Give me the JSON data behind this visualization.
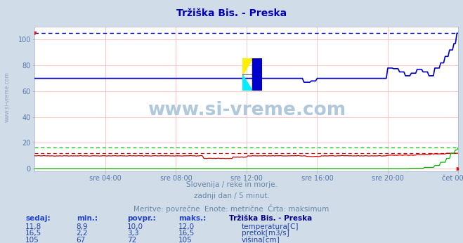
{
  "title": "Tržiška Bis. - Preska",
  "background_color": "#d0dce8",
  "plot_bg_color": "#ffffff",
  "grid_color": "#ffbbbb",
  "tick_color": "#5577aa",
  "title_color": "#0000bb",
  "xlim": [
    0,
    288
  ],
  "ylim": [
    -2,
    110
  ],
  "yticks": [
    0,
    20,
    40,
    60,
    80,
    100
  ],
  "xtick_labels": [
    "sre 04:00",
    "sre 08:00",
    "sre 12:00",
    "sre 16:00",
    "sre 20:00",
    "čet 00:00"
  ],
  "xtick_positions": [
    48,
    96,
    144,
    192,
    240,
    288
  ],
  "watermark_text": "www.si-vreme.com",
  "watermark_color": "#b0c8dc",
  "subtitle1": "Slovenija / reke in morje.",
  "subtitle2": "zadnji dan / 5 minut.",
  "subtitle3": "Meritve: povrečne  Enote: metrične  Črta: maksimum",
  "subtitle_color": "#6688aa",
  "legend_title": "Tržiška Bis. - Preska",
  "legend_title_color": "#000088",
  "table_header": [
    "sedaj:",
    "min.:",
    "povpr.:",
    "maks.:"
  ],
  "table_data": [
    [
      "11,8",
      "8,9",
      "10,0",
      "12,0"
    ],
    [
      "16,5",
      "2,2",
      "3,3",
      "16,5"
    ],
    [
      "105",
      "67",
      "72",
      "105"
    ]
  ],
  "series_labels": [
    "temperatura[C]",
    "pretok[m3/s]",
    "višina[cm]"
  ],
  "series_colors": [
    "#cc0000",
    "#00bb00",
    "#0000cc"
  ],
  "temp_max_line": 12.0,
  "flow_max_line": 16.5,
  "height_max_line": 105,
  "logo_colors": {
    "yellow": "#ffee00",
    "cyan": "#00eeff",
    "blue": "#0000cc"
  }
}
